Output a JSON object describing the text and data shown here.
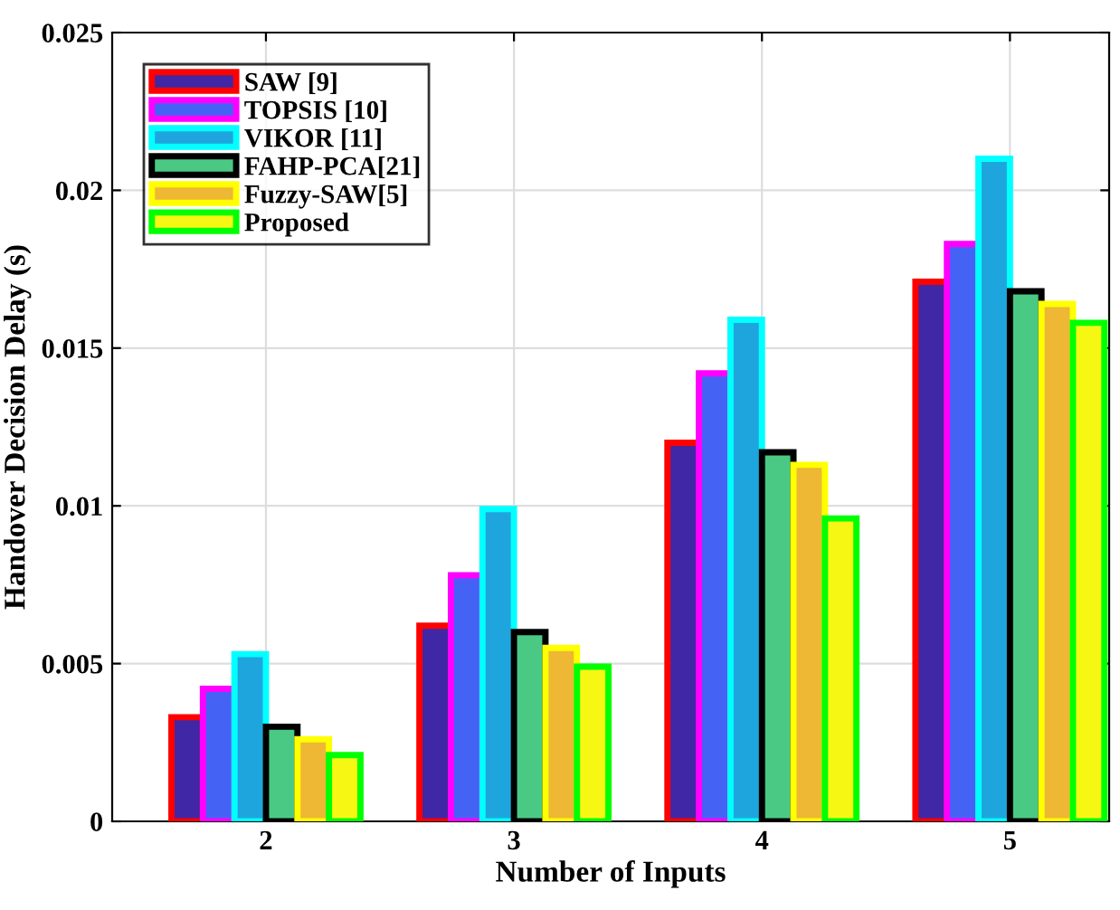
{
  "chart_data": {
    "type": "bar",
    "xlabel": "Number of Inputs",
    "ylabel": "Handover Decision Delay (s)",
    "categories": [
      "2",
      "3",
      "4",
      "5"
    ],
    "series": [
      {
        "name": "SAW [9]",
        "color": "#3f27a5",
        "values": [
          0.0033,
          0.0062,
          0.012,
          0.0171
        ]
      },
      {
        "name": "TOPSIS [10]",
        "color": "#4463f5",
        "values": [
          0.0042,
          0.0078,
          0.0142,
          0.0183
        ]
      },
      {
        "name": "VIKOR [11]",
        "color": "#1fa5dd",
        "values": [
          0.0053,
          0.0099,
          0.0159,
          0.021
        ]
      },
      {
        "name": "FAHP-PCA[21]",
        "color": "#4ac985",
        "values": [
          0.003,
          0.006,
          0.0117,
          0.0168
        ]
      },
      {
        "name": "Fuzzy-SAW[5]",
        "color": "#eeb734",
        "values": [
          0.0026,
          0.0055,
          0.0113,
          0.0164
        ]
      },
      {
        "name": "Proposed",
        "color": "#f7f714",
        "values": [
          0.0021,
          0.0049,
          0.0096,
          0.0158
        ]
      }
    ],
    "ylim": [
      0,
      0.025
    ],
    "yticks": [
      0,
      0.005,
      0.01,
      0.015,
      0.02,
      0.025
    ],
    "grid": true,
    "legend": "top left"
  }
}
